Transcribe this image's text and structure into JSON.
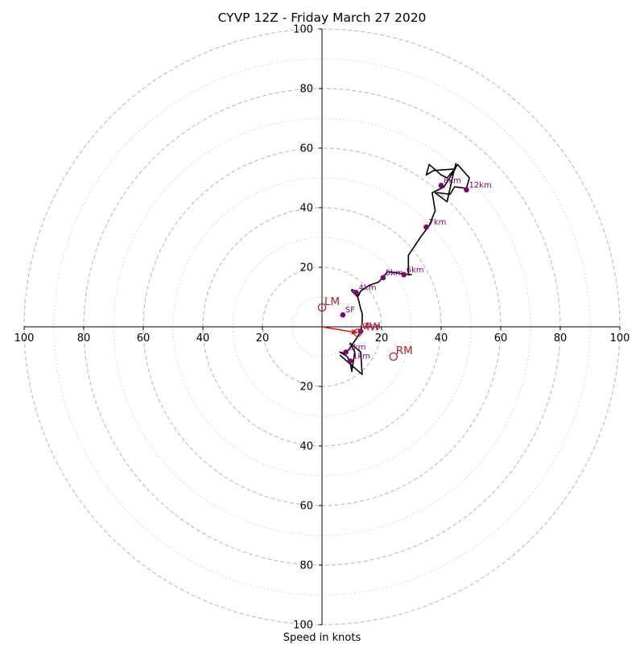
{
  "chart_data": {
    "type": "scatter",
    "title": "CYVP 12Z - Friday March 27 2020",
    "xlabel": "Speed in knots",
    "ylabel": "",
    "xlim": [
      -100,
      100
    ],
    "ylim": [
      -100,
      100
    ],
    "rings_dashed": [
      20,
      40,
      60,
      80,
      100
    ],
    "rings_dotted": [
      10,
      30,
      50,
      70,
      90
    ],
    "x_ticks": [
      {
        "value": -100,
        "label": "100"
      },
      {
        "value": -80,
        "label": "80"
      },
      {
        "value": -60,
        "label": "60"
      },
      {
        "value": -40,
        "label": "40"
      },
      {
        "value": -20,
        "label": "20"
      },
      {
        "value": 20,
        "label": "20"
      },
      {
        "value": 40,
        "label": "40"
      },
      {
        "value": 60,
        "label": "60"
      },
      {
        "value": 80,
        "label": "80"
      },
      {
        "value": 100,
        "label": "100"
      }
    ],
    "y_ticks": [
      {
        "value": 100,
        "label": "100"
      },
      {
        "value": 80,
        "label": "80"
      },
      {
        "value": 60,
        "label": "60"
      },
      {
        "value": 40,
        "label": "40"
      },
      {
        "value": 20,
        "label": "20"
      },
      {
        "value": -20,
        "label": "20"
      },
      {
        "value": -40,
        "label": "40"
      },
      {
        "value": -60,
        "label": "60"
      },
      {
        "value": -80,
        "label": "80"
      },
      {
        "value": -100,
        "label": "100"
      }
    ],
    "hodograph_trace": [
      [
        6,
        -9.5
      ],
      [
        13.5,
        -16
      ],
      [
        13,
        -8.5
      ],
      [
        9.5,
        -5.5
      ],
      [
        11,
        -8.5
      ],
      [
        10,
        -15
      ],
      [
        9.5,
        -12
      ],
      [
        8.5,
        -10
      ],
      [
        6,
        -8.5
      ],
      [
        8,
        -9
      ],
      [
        11.5,
        -4
      ],
      [
        13,
        -1.5
      ],
      [
        13.5,
        1.5
      ],
      [
        13.5,
        4.5
      ],
      [
        13,
        6
      ],
      [
        11.5,
        12
      ],
      [
        10,
        12.5
      ],
      [
        10,
        12
      ],
      [
        12,
        10
      ],
      [
        13,
        12
      ],
      [
        16,
        14
      ],
      [
        19,
        15
      ],
      [
        22,
        18.5
      ],
      [
        30,
        17.5
      ],
      [
        29,
        17.5
      ],
      [
        29,
        24
      ],
      [
        33,
        30
      ],
      [
        36,
        34
      ],
      [
        38,
        39
      ],
      [
        37,
        45
      ],
      [
        41,
        47
      ],
      [
        45,
        53.5
      ],
      [
        42,
        50
      ],
      [
        40,
        51
      ],
      [
        36,
        54.5
      ],
      [
        35,
        51
      ],
      [
        37.5,
        52.5
      ],
      [
        44.5,
        53
      ],
      [
        45.5,
        54.5
      ],
      [
        49.5,
        50
      ],
      [
        48.5,
        46.5
      ],
      [
        44.5,
        47
      ],
      [
        43,
        44.5
      ],
      [
        39,
        45
      ],
      [
        38,
        45
      ],
      [
        42,
        42
      ],
      [
        44,
        51
      ],
      [
        45,
        55
      ]
    ],
    "height_points": [
      {
        "x": 9.5,
        "y": -11.5,
        "label": "1km"
      },
      {
        "x": 8,
        "y": -8.5,
        "label": "2km"
      },
      {
        "x": 13,
        "y": -1.5,
        "label": "3km"
      },
      {
        "x": 11.5,
        "y": 11.5,
        "label": "4km"
      },
      {
        "x": 20.5,
        "y": 16.5,
        "label": "5km"
      },
      {
        "x": 27.5,
        "y": 17.5,
        "label": "6km"
      },
      {
        "x": 35,
        "y": 33.5,
        "label": "7km"
      },
      {
        "x": 40,
        "y": 47.5,
        "label": "8km"
      },
      {
        "x": 48.5,
        "y": 46,
        "label": "12km"
      },
      {
        "x": 7,
        "y": 4,
        "label": "SF"
      }
    ],
    "storm_motion": [
      {
        "label": "LM",
        "x": 0,
        "y": 6.5
      },
      {
        "label": "RM",
        "x": 24,
        "y": -10
      },
      {
        "label": "MW",
        "x": 12,
        "y": -2
      }
    ],
    "shear_vector": {
      "from": [
        0,
        0
      ],
      "to": [
        12,
        -2
      ]
    },
    "colors": {
      "rings": "#bbbbbb",
      "trace": "#000000",
      "height_points": "#800080",
      "storm_motion": "#b22222",
      "shear_vector": "#ff0000"
    }
  }
}
